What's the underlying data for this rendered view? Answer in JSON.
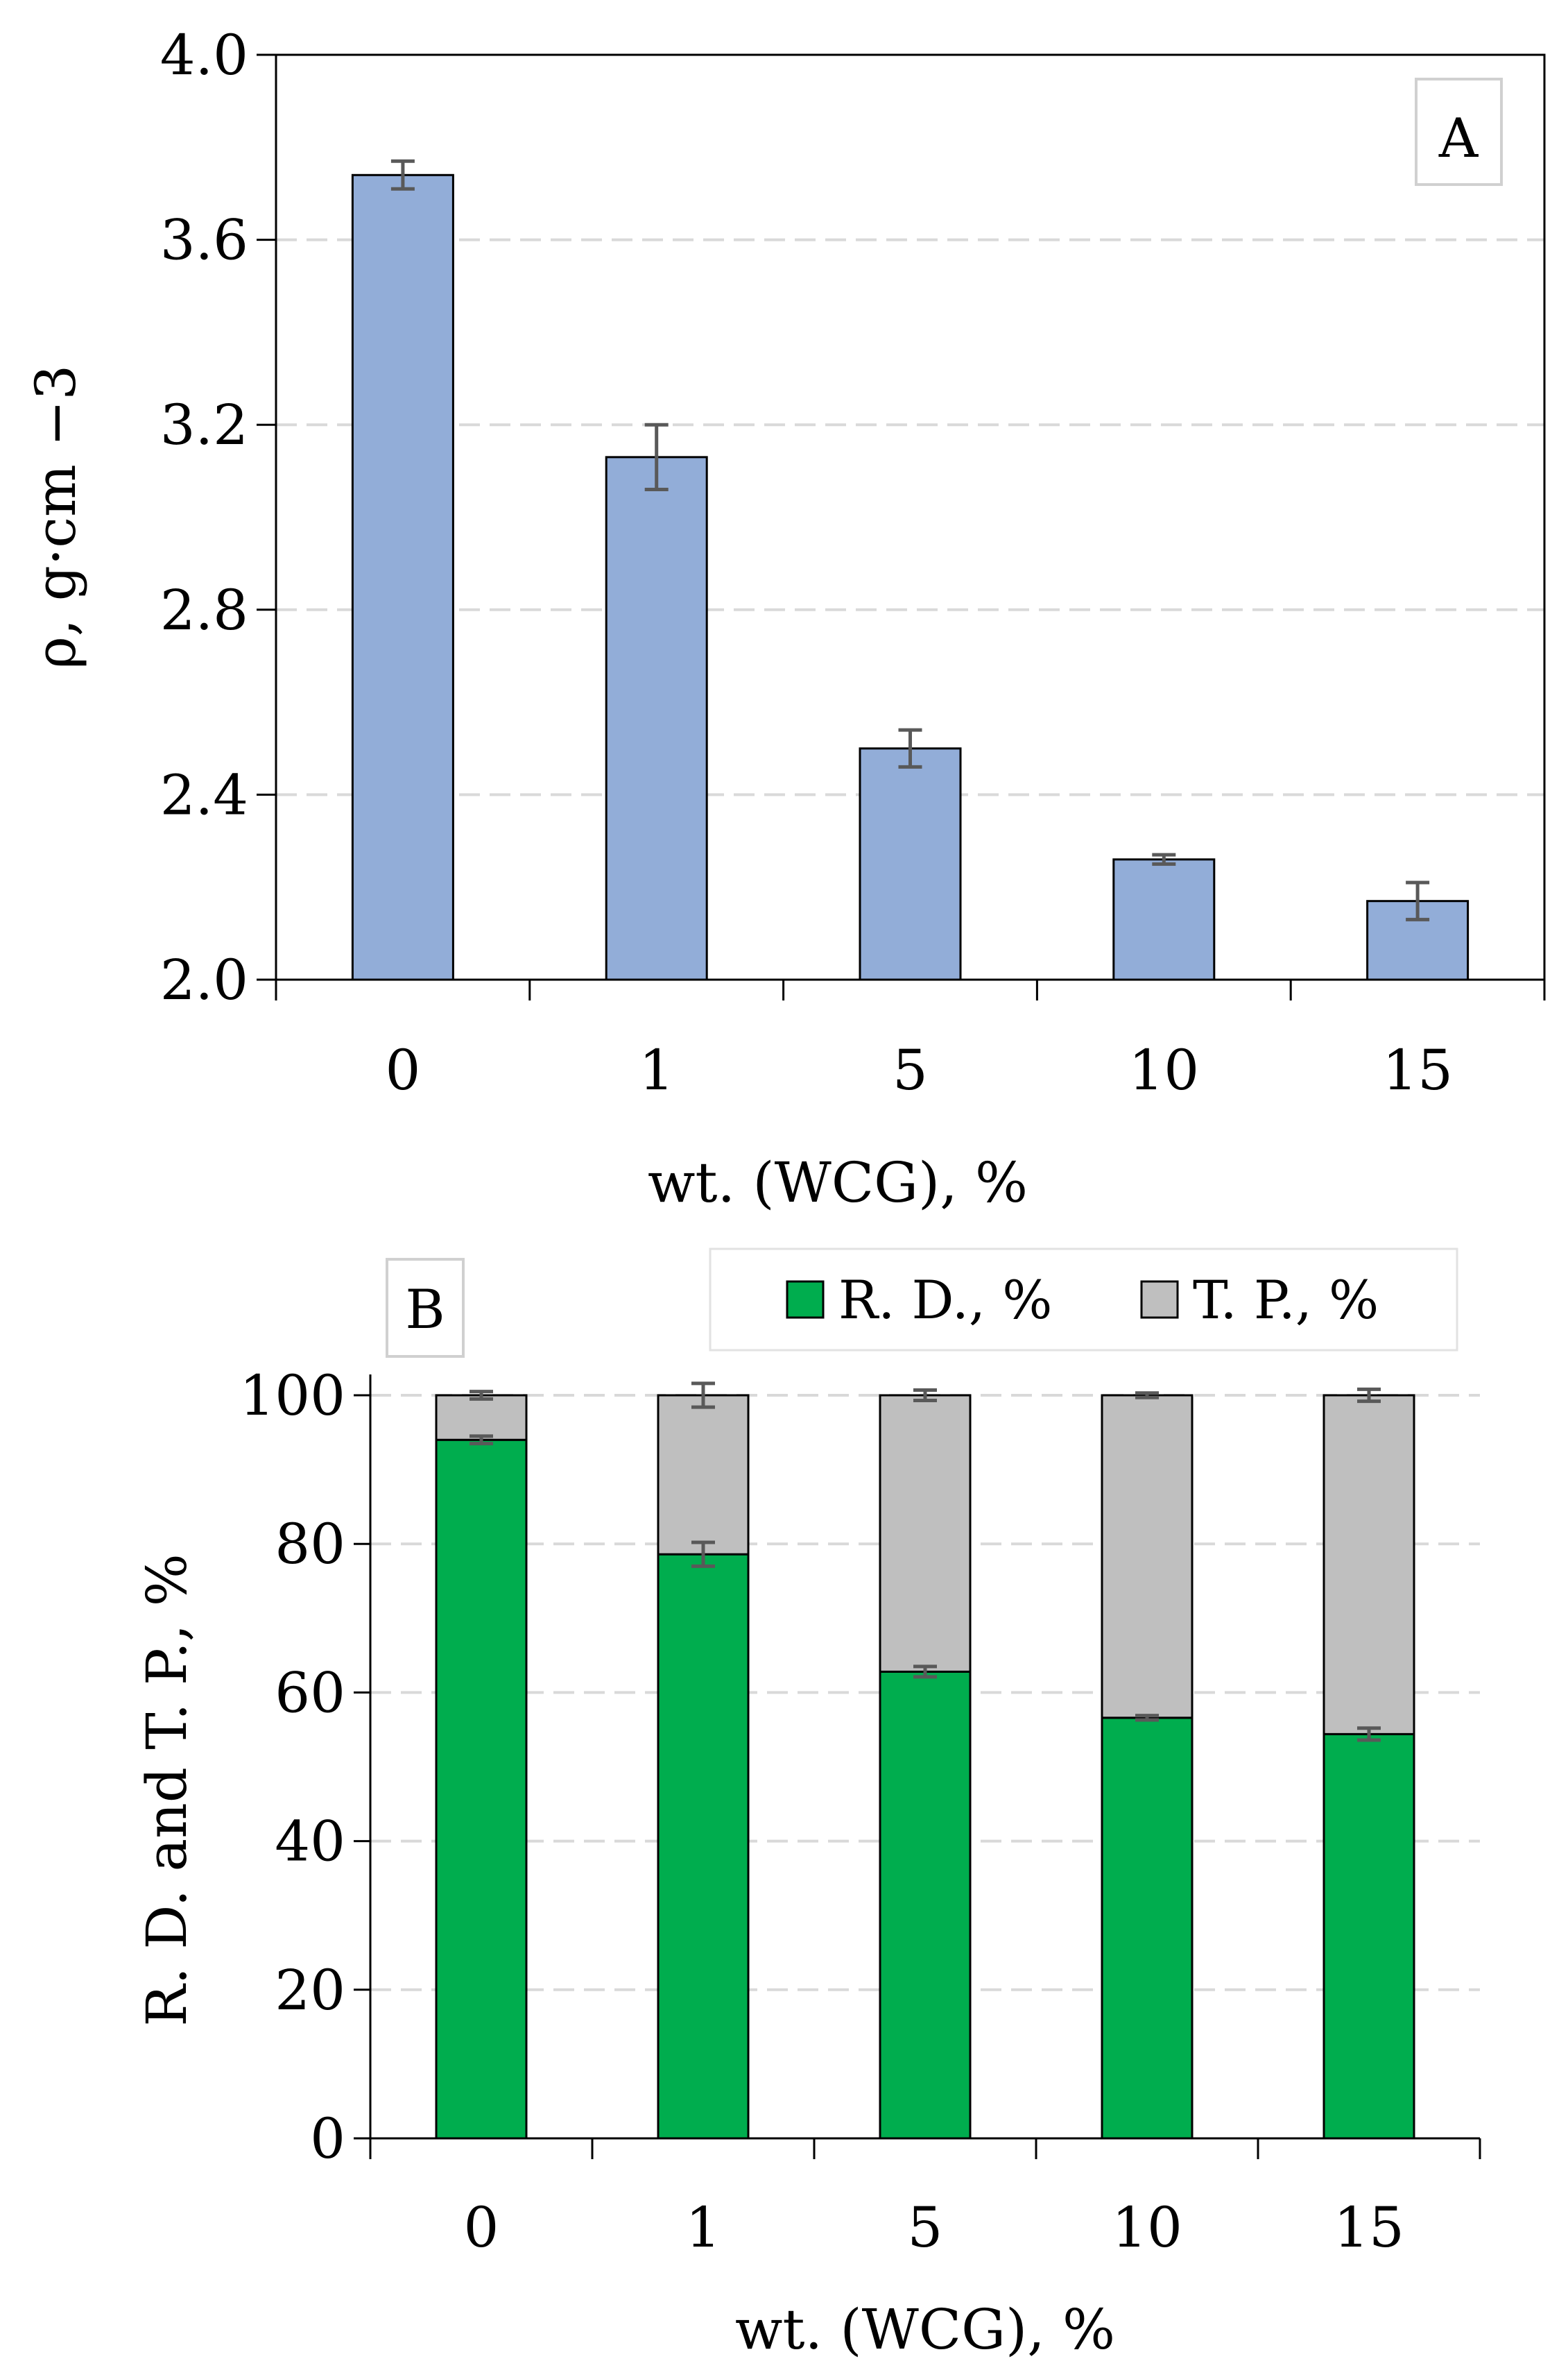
{
  "chart_data": [
    {
      "panel": "A",
      "type": "bar",
      "categories": [
        "0",
        "1",
        "5",
        "10",
        "15"
      ],
      "values": [
        3.74,
        3.13,
        2.5,
        2.26,
        2.17
      ],
      "errors": [
        0.03,
        0.07,
        0.04,
        0.01,
        0.04
      ],
      "ylabel": "ρ, g·cm −3",
      "xlabel": "wt. (WCG), %",
      "ylim": [
        2.0,
        4.0
      ],
      "yticks": [
        "2.0",
        "2.4",
        "2.8",
        "3.2",
        "3.6",
        "4.0"
      ],
      "grid": true,
      "bar_color": "#92add8"
    },
    {
      "panel": "B",
      "type": "stacked-bar",
      "categories": [
        "0",
        "1",
        "5",
        "10",
        "15"
      ],
      "series": [
        {
          "name": "R. D., %",
          "values": [
            94.0,
            78.6,
            62.8,
            56.6,
            54.4
          ],
          "errors": [
            0.5,
            1.6,
            0.7,
            0.3,
            0.8
          ],
          "color": "#00ad4e"
        },
        {
          "name": "T. P., %",
          "values": [
            6.0,
            21.4,
            37.2,
            43.4,
            45.6
          ],
          "errors": [
            0.5,
            1.6,
            0.7,
            0.3,
            0.8
          ],
          "color": "#bfbfbf"
        }
      ],
      "ylabel": "R. D. and  T. P., %",
      "xlabel": "wt. (WCG), %",
      "ylim": [
        0,
        100
      ],
      "yticks": [
        "0",
        "20",
        "40",
        "60",
        "80",
        "100"
      ],
      "grid": true,
      "legend_position": "top-right"
    }
  ]
}
